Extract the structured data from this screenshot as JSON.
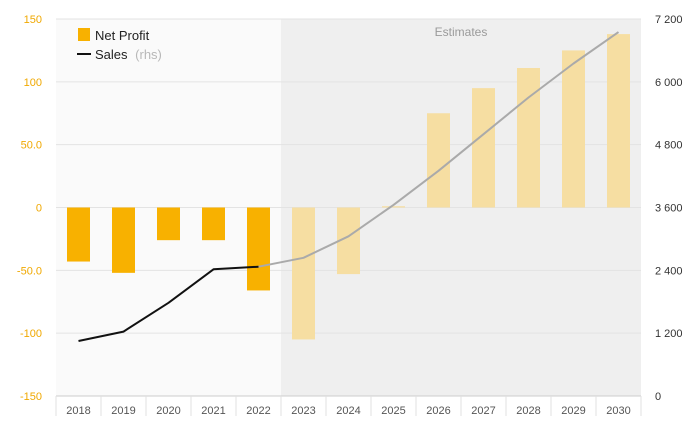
{
  "chart_data": {
    "type": "bar",
    "categories": [
      "2018",
      "2019",
      "2020",
      "2021",
      "2022",
      "2023",
      "2024",
      "2025",
      "2026",
      "2027",
      "2028",
      "2029",
      "2030"
    ],
    "series": [
      {
        "name": "Net Profit",
        "kind": "bar",
        "axis": "left",
        "values": [
          -43,
          -52,
          -26,
          -26,
          -66,
          -105,
          -53,
          1,
          75,
          95,
          111,
          125,
          138
        ]
      },
      {
        "name": "Sales",
        "name_suffix": "(rhs)",
        "kind": "line",
        "axis": "right",
        "values": [
          1050,
          1230,
          1780,
          2420,
          2470,
          2640,
          3050,
          3650,
          4300,
          5000,
          5700,
          6350,
          6950
        ]
      }
    ],
    "estimates_label": "Estimates",
    "estimate_start_category": "2023",
    "yaxis_left": {
      "ylim": [
        -150,
        150
      ],
      "ticks": [
        -150,
        -100,
        -50,
        0,
        50,
        100,
        150
      ],
      "tick_labels": [
        "-150",
        "-100",
        "-50.0",
        "0",
        "50.0",
        "100",
        "150"
      ]
    },
    "yaxis_right": {
      "ylim": [
        0,
        7200
      ],
      "ticks": [
        0,
        1200,
        2400,
        3600,
        4800,
        6000,
        7200
      ],
      "tick_labels": [
        "0",
        "1 200",
        "2 400",
        "3 600",
        "4 800",
        "6 000",
        "7 200"
      ]
    },
    "legend": {
      "position": "top-left",
      "net_profit": "Net Profit",
      "sales": "Sales",
      "sales_suffix": "(rhs)"
    },
    "colors": {
      "bar_actual": "#f8b100",
      "bar_estimate": "#f6dea2",
      "line_actual": "#111111",
      "line_estimate": "#aaaaaa",
      "estimate_bg": "#efefef",
      "plot_bg": "#fafafa",
      "left_tick": "#f0a800"
    },
    "grid": true
  }
}
